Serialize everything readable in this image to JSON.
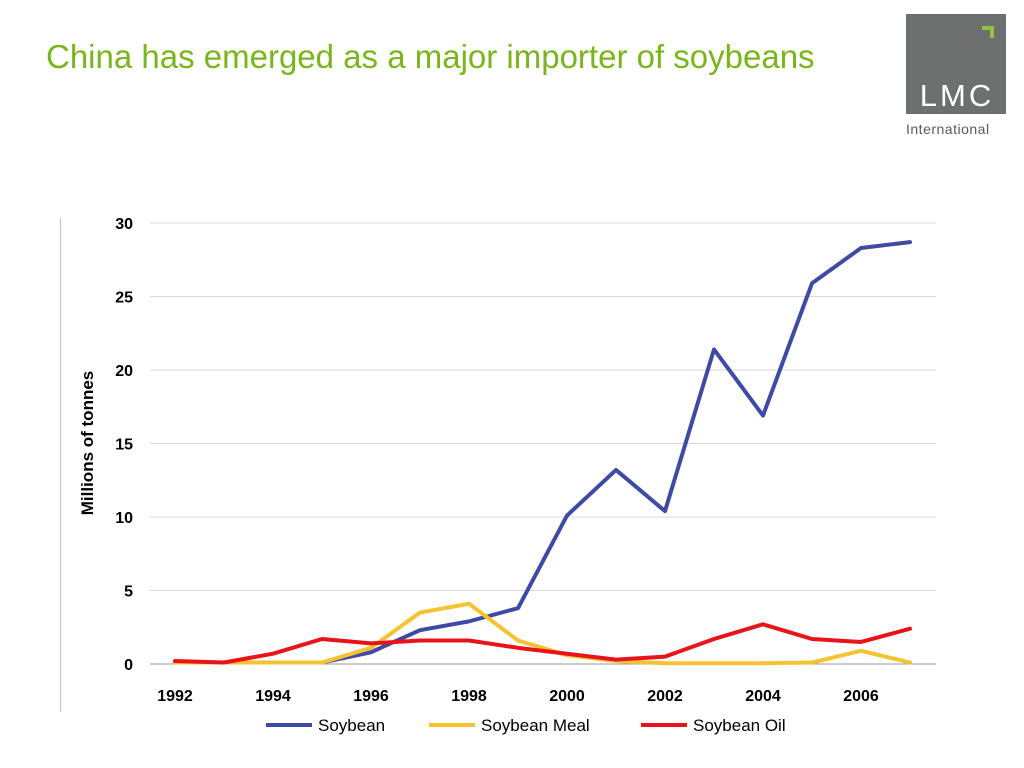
{
  "slide": {
    "title": "China has emerged as a major importer of soybeans"
  },
  "logo": {
    "name": "LMC",
    "subtitle": "International"
  },
  "chart_data": {
    "type": "line",
    "title": "",
    "xlabel": "",
    "ylabel": "Millions of tonnes",
    "x": [
      1992,
      1993,
      1994,
      1995,
      1996,
      1997,
      1998,
      1999,
      2000,
      2001,
      2002,
      2003,
      2004,
      2005,
      2006,
      2007
    ],
    "xticks": [
      "1992",
      "1994",
      "1996",
      "1998",
      "2000",
      "2002",
      "2004",
      "2006"
    ],
    "xlim": [
      1992,
      2007
    ],
    "ylim": [
      0,
      30
    ],
    "yticks": [
      "0",
      "5",
      "10",
      "15",
      "20",
      "25",
      "30"
    ],
    "grid": true,
    "legend_position": "bottom",
    "series": [
      {
        "name": "Soybean",
        "color": "#3f4aa3",
        "values": [
          0.1,
          0.1,
          0.1,
          0.1,
          0.8,
          2.3,
          2.9,
          3.8,
          10.1,
          13.2,
          10.4,
          21.4,
          16.9,
          25.9,
          28.3,
          28.7
        ]
      },
      {
        "name": "Soybean Meal",
        "color": "#f5c330",
        "values": [
          0.1,
          0.1,
          0.1,
          0.1,
          1.1,
          3.5,
          4.1,
          1.6,
          0.6,
          0.2,
          0.05,
          0.05,
          0.05,
          0.1,
          0.9,
          0.1
        ]
      },
      {
        "name": "Soybean Oil",
        "color": "#e8141a",
        "values": [
          0.2,
          0.1,
          0.7,
          1.7,
          1.4,
          1.6,
          1.6,
          1.1,
          0.7,
          0.3,
          0.5,
          1.7,
          2.7,
          1.7,
          1.5,
          2.4
        ]
      }
    ]
  }
}
